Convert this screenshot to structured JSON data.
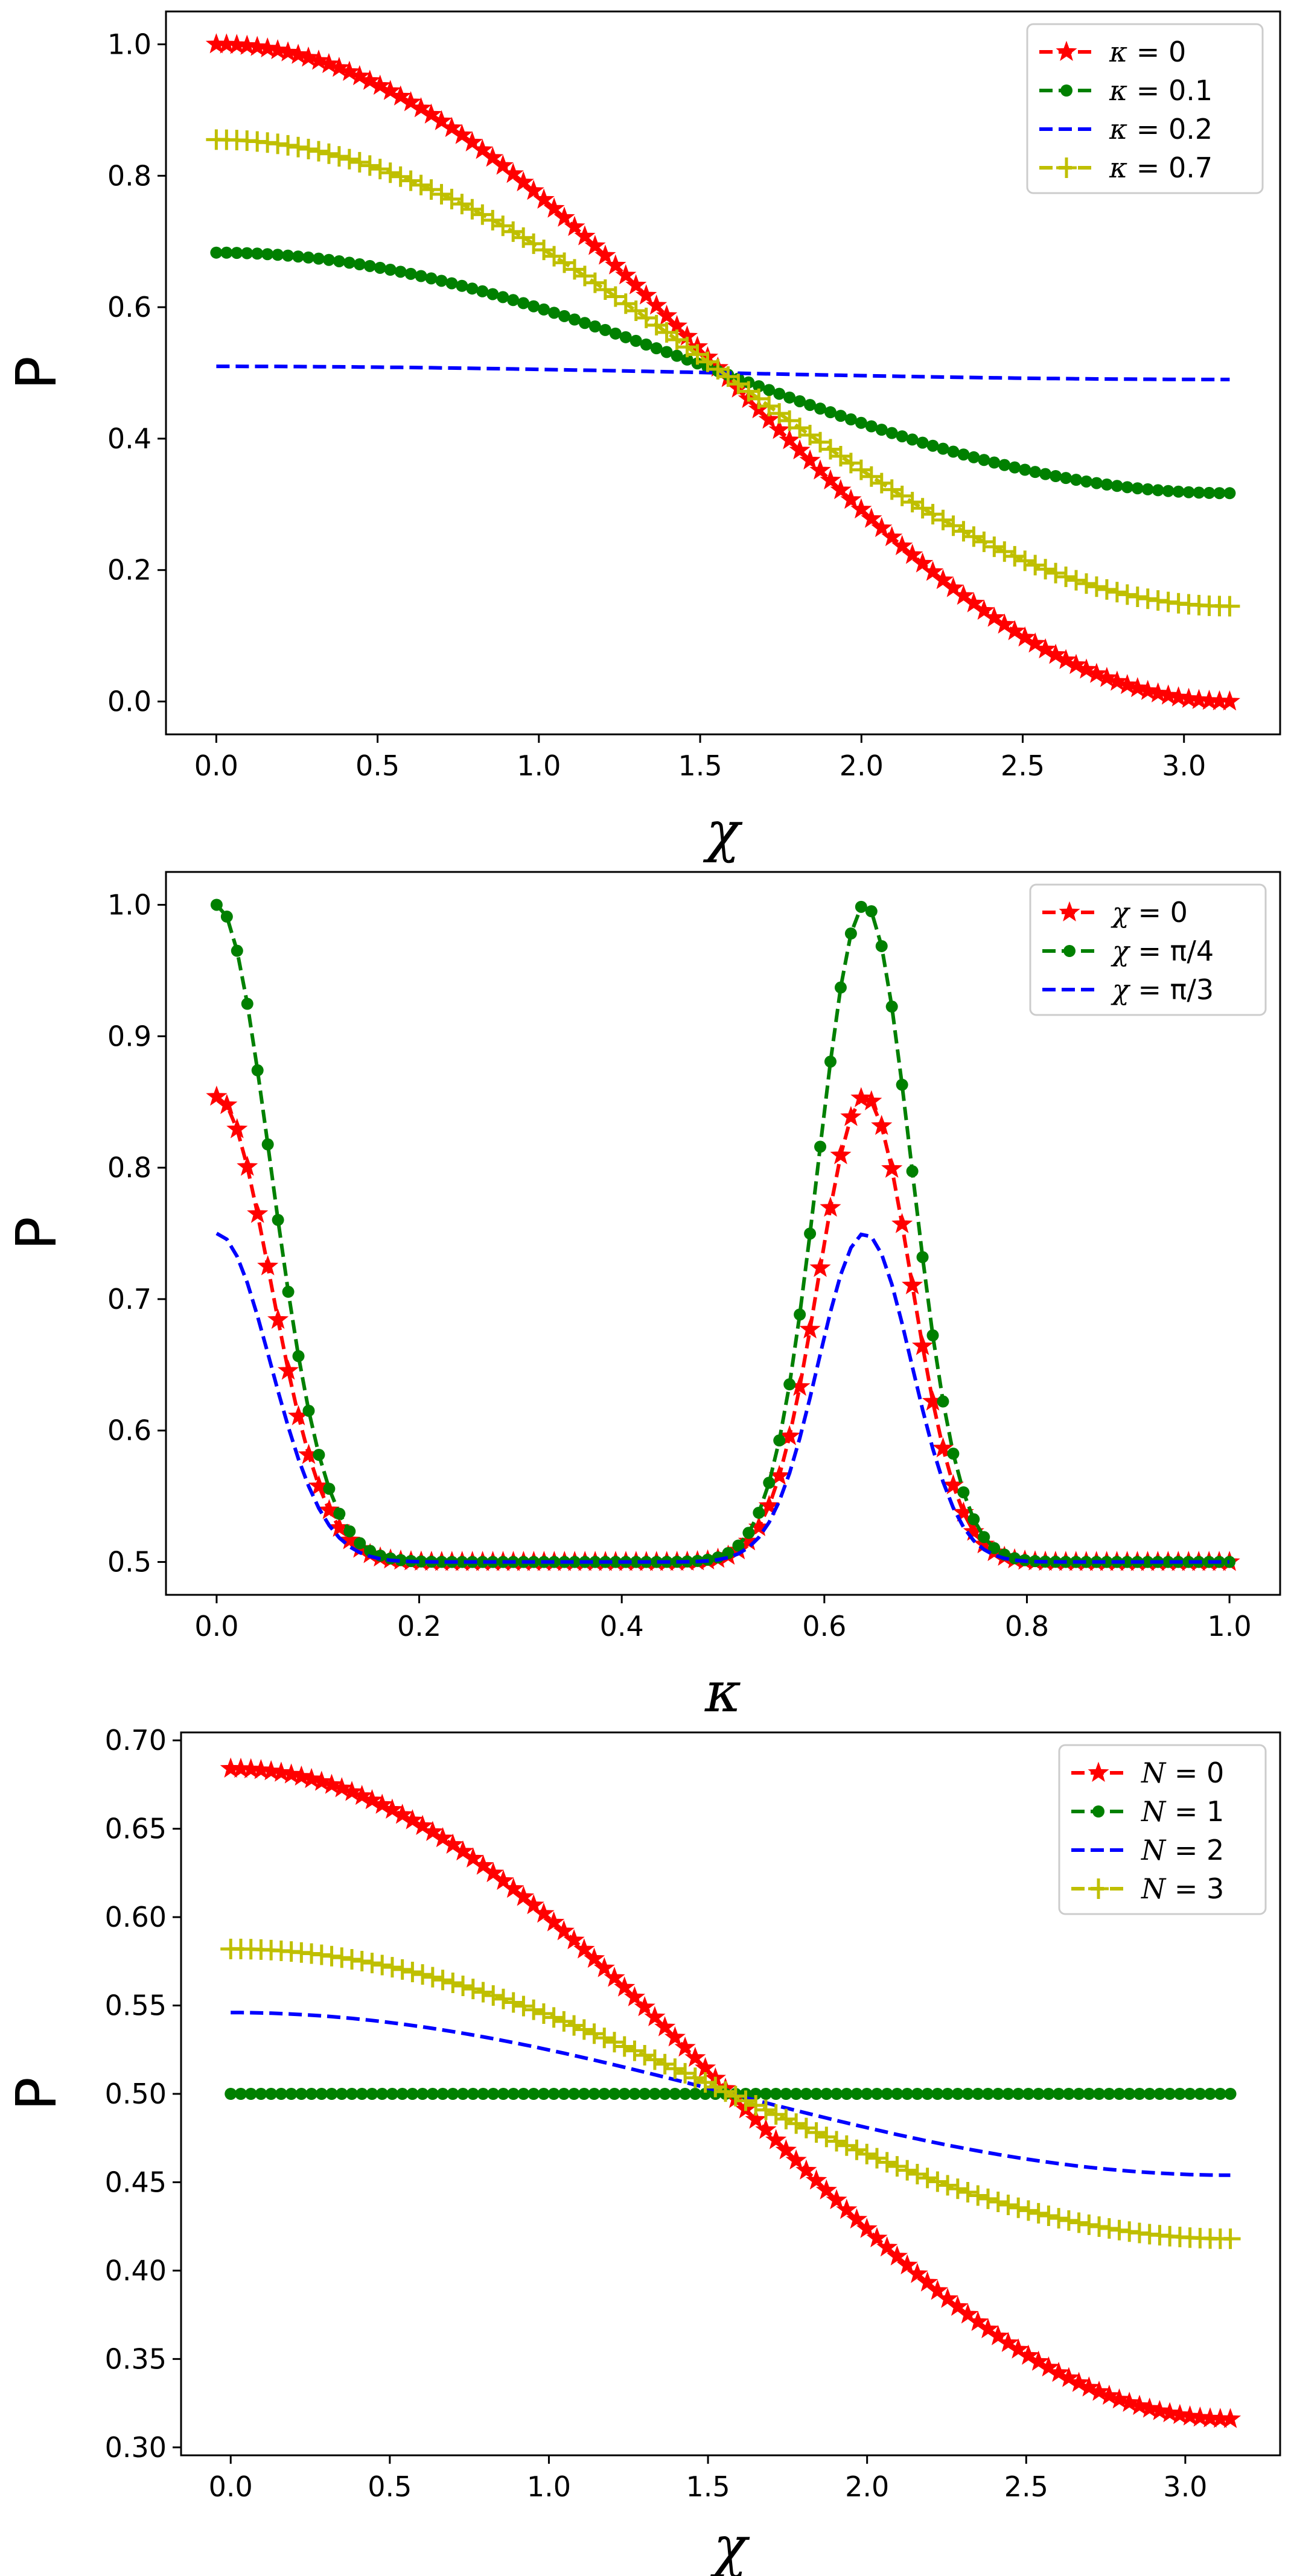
{
  "chart_data": [
    {
      "type": "line",
      "xlabel": "χ",
      "ylabel": "P",
      "xlim": [
        -0.156,
        3.298
      ],
      "ylim": [
        -0.05,
        1.05
      ],
      "xticks": [
        "0.0",
        "0.5",
        "1.0",
        "1.5",
        "2.0",
        "2.5",
        "3.0"
      ],
      "xtick_values": [
        0,
        0.5,
        1.0,
        1.5,
        2.0,
        2.5,
        3.0
      ],
      "yticks": [
        "0.0",
        "0.2",
        "0.4",
        "0.6",
        "0.8",
        "1.0"
      ],
      "ytick_values": [
        0,
        0.2,
        0.4,
        0.6,
        0.8,
        1.0
      ],
      "legend": "top-right",
      "grid": false,
      "x_range": [
        0,
        3.1416
      ],
      "series": [
        {
          "name": "κ = 0",
          "prefix": "κ",
          "value": "0",
          "color": "#ff0000",
          "marker": "star",
          "center": 0.5,
          "amplitude": 0.5
        },
        {
          "name": "κ = 0.1",
          "prefix": "κ",
          "value": "0.1",
          "color": "#008000",
          "marker": "circle",
          "center": 0.5,
          "amplitude": 0.183
        },
        {
          "name": "κ = 0.2",
          "prefix": "κ",
          "value": "0.2",
          "color": "#0000ff",
          "marker": "none",
          "center": 0.5,
          "amplitude": 0.01
        },
        {
          "name": "κ = 0.7",
          "prefix": "κ",
          "value": "0.7",
          "color": "#bfbf00",
          "marker": "plus",
          "center": 0.5,
          "amplitude": 0.355
        }
      ]
    },
    {
      "type": "line",
      "xlabel": "κ",
      "ylabel": "P",
      "xlim": [
        -0.05,
        1.05
      ],
      "ylim": [
        0.475,
        1.025
      ],
      "xticks": [
        "0.0",
        "0.2",
        "0.4",
        "0.6",
        "0.8",
        "1.0"
      ],
      "xtick_values": [
        0,
        0.2,
        0.4,
        0.6,
        0.8,
        1.0
      ],
      "yticks": [
        "0.5",
        "0.6",
        "0.7",
        "0.8",
        "0.9",
        "1.0"
      ],
      "ytick_values": [
        0.5,
        0.6,
        0.7,
        0.8,
        0.9,
        1.0
      ],
      "legend": "top-right",
      "grid": false,
      "x_range": [
        0,
        1
      ],
      "peaks": [
        {
          "center": 0.0,
          "width": 0.075
        },
        {
          "center": 0.64,
          "width": 0.065
        }
      ],
      "series": [
        {
          "name": "χ = 0",
          "prefix": "χ",
          "value": "0",
          "color": "#ff0000",
          "marker": "star",
          "peak": 0.854
        },
        {
          "name": "χ = π/4",
          "prefix": "χ",
          "value": "π/4",
          "color": "#008000",
          "marker": "circle",
          "peak": 1.0
        },
        {
          "name": "χ = π/3",
          "prefix": "χ",
          "value": "π/3",
          "color": "#0000ff",
          "marker": "none",
          "peak": 0.75
        }
      ]
    },
    {
      "type": "line",
      "xlabel": "χ",
      "ylabel": "P",
      "xlim": [
        -0.156,
        3.298
      ],
      "ylim": [
        0.2955,
        0.7045
      ],
      "xticks": [
        "0.0",
        "0.5",
        "1.0",
        "1.5",
        "2.0",
        "2.5",
        "3.0"
      ],
      "xtick_values": [
        0,
        0.5,
        1.0,
        1.5,
        2.0,
        2.5,
        3.0
      ],
      "yticks": [
        "0.30",
        "0.35",
        "0.40",
        "0.45",
        "0.50",
        "0.55",
        "0.60",
        "0.65",
        "0.70"
      ],
      "ytick_values": [
        0.3,
        0.35,
        0.4,
        0.45,
        0.5,
        0.55,
        0.6,
        0.65,
        0.7
      ],
      "legend": "top-right",
      "grid": false,
      "x_range": [
        0,
        3.1416
      ],
      "series": [
        {
          "name": "N = 0",
          "prefix": "N",
          "value": "0",
          "color": "#ff0000",
          "marker": "star",
          "center": 0.5,
          "amplitude": 0.184
        },
        {
          "name": "N = 1",
          "prefix": "N",
          "value": "1",
          "color": "#008000",
          "marker": "circle",
          "center": 0.5,
          "amplitude": 0.0
        },
        {
          "name": "N = 2",
          "prefix": "N",
          "value": "2",
          "color": "#0000ff",
          "marker": "none",
          "center": 0.5,
          "amplitude": 0.046
        },
        {
          "name": "N = 3",
          "prefix": "N",
          "value": "3",
          "color": "#bfbf00",
          "marker": "plus",
          "center": 0.5,
          "amplitude": 0.082
        }
      ]
    }
  ]
}
